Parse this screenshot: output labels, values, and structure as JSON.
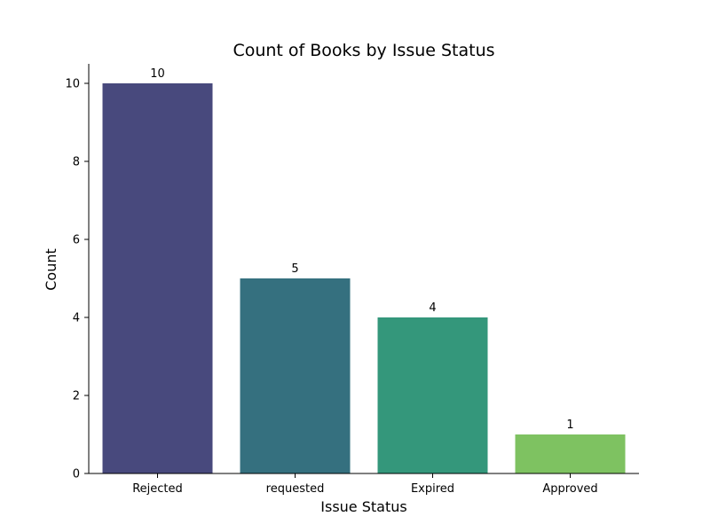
{
  "chart_data": {
    "type": "bar",
    "title": "Count of Books by Issue Status",
    "xlabel": "Issue Status",
    "ylabel": "Count",
    "categories": [
      "Rejected",
      "requested",
      "Expired",
      "Approved"
    ],
    "values": [
      10,
      5,
      4,
      1
    ],
    "data_labels": [
      "10",
      "5",
      "4",
      "1"
    ],
    "colors": [
      "#48497d",
      "#35707f",
      "#34977b",
      "#7ec261"
    ],
    "ylim": [
      0,
      10.5
    ],
    "yticks": [
      0,
      2,
      4,
      6,
      8,
      10
    ],
    "grid": false,
    "legend": "none"
  }
}
